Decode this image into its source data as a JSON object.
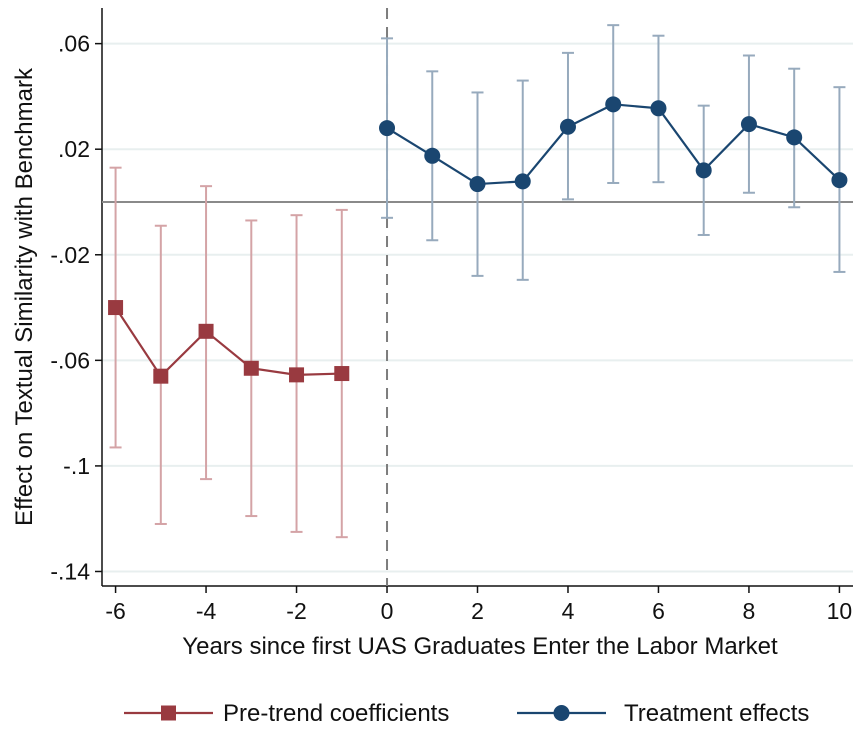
{
  "chart_data": {
    "type": "line",
    "title": "",
    "xlabel": "Years since first UAS Graduates Enter the Labor Market",
    "ylabel": "Effect on Textual Similarity with Benchmark",
    "xlim": [
      -6.3,
      10.3
    ],
    "ylim": [
      -0.1455,
      0.0735
    ],
    "x_ticks": [
      -6,
      -4,
      -2,
      0,
      2,
      4,
      6,
      8,
      10
    ],
    "x_tick_labels": [
      "-6",
      "-4",
      "-2",
      "0",
      "2",
      "4",
      "6",
      "8",
      "10"
    ],
    "y_ticks": [
      0.06,
      0.02,
      -0.02,
      -0.06,
      -0.1,
      -0.14
    ],
    "y_tick_labels": [
      ".06",
      ".02",
      "-.02",
      "-.06",
      "-.1",
      "-.14"
    ],
    "grid": true,
    "reference_lines": {
      "horizontal_y": 0,
      "vertical_x": 0
    },
    "legend_position": "bottom",
    "series": [
      {
        "name": "Pre-trend coefficients",
        "marker": "square",
        "color": "#993a40",
        "ci_color": "#d4a3a6",
        "x": [
          -6,
          -5,
          -4,
          -3,
          -2,
          -1
        ],
        "y": [
          -0.04,
          -0.066,
          -0.049,
          -0.063,
          -0.0655,
          -0.065
        ],
        "ci_low": [
          -0.093,
          -0.122,
          -0.105,
          -0.119,
          -0.125,
          -0.127
        ],
        "ci_high": [
          0.013,
          -0.009,
          0.006,
          -0.007,
          -0.005,
          -0.003
        ]
      },
      {
        "name": "Treatment effects",
        "marker": "circle",
        "color": "#1a4670",
        "ci_color": "#97aabd",
        "x": [
          0,
          1,
          2,
          3,
          4,
          5,
          6,
          7,
          8,
          9,
          10
        ],
        "y": [
          0.028,
          0.0175,
          0.0068,
          0.0078,
          0.0285,
          0.037,
          0.0355,
          0.012,
          0.0295,
          0.0245,
          0.0083
        ],
        "ci_low": [
          -0.006,
          -0.0145,
          -0.028,
          -0.0295,
          0.001,
          0.0072,
          0.0075,
          -0.0125,
          0.0035,
          -0.002,
          -0.0265
        ],
        "ci_high": [
          0.062,
          0.0495,
          0.0415,
          0.046,
          0.0565,
          0.067,
          0.063,
          0.0365,
          0.0555,
          0.0505,
          0.0435
        ]
      }
    ]
  }
}
